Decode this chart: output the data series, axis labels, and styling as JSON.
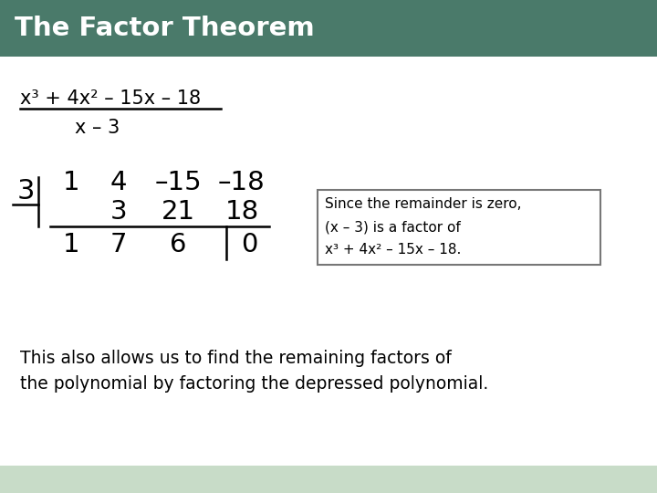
{
  "title": "The Factor Theorem",
  "title_bg_color": "#4a7a6a",
  "title_text_color": "#ffffff",
  "main_bg_color": "#ffffff",
  "slide_bg_color": "#c8dcc8",
  "fraction_numerator": "x³ + 4x² – 15x – 18",
  "fraction_denominator": "x – 3",
  "synthetic_divisor": "3",
  "row1": [
    "1",
    "4",
    "–15",
    "–18"
  ],
  "row2": [
    "3",
    "21",
    "18"
  ],
  "row3": [
    "1",
    "7",
    "6",
    "0"
  ],
  "box_text_line1": "Since the remainder is zero,",
  "box_text_line2": "(x – 3) is a factor of",
  "box_text_line3": "x³ + 4x² – 15x – 18.",
  "bottom_text_line1": "This also allows us to find the remaining factors of",
  "bottom_text_line2": "the polynomial by factoring the depressed polynomial.",
  "body_text_color": "#000000",
  "box_border_color": "#777777",
  "box_bg_color": "#ffffff"
}
